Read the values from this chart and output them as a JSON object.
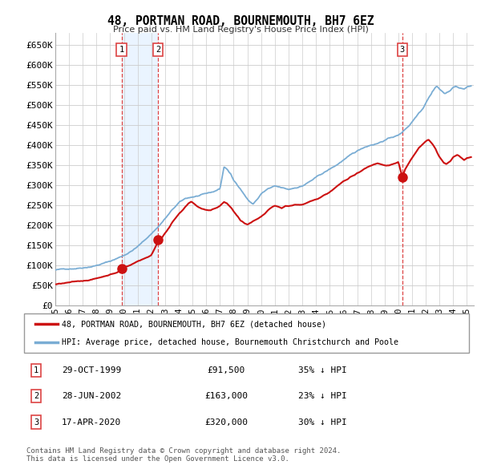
{
  "title": "48, PORTMAN ROAD, BOURNEMOUTH, BH7 6EZ",
  "subtitle": "Price paid vs. HM Land Registry's House Price Index (HPI)",
  "ylabel_ticks": [
    "£0",
    "£50K",
    "£100K",
    "£150K",
    "£200K",
    "£250K",
    "£300K",
    "£350K",
    "£400K",
    "£450K",
    "£500K",
    "£550K",
    "£600K",
    "£650K"
  ],
  "ytick_values": [
    0,
    50000,
    100000,
    150000,
    200000,
    250000,
    300000,
    350000,
    400000,
    450000,
    500000,
    550000,
    600000,
    650000
  ],
  "hpi_color": "#7aadd4",
  "hpi_fill_color": "#ddeeff",
  "price_color": "#cc1111",
  "marker_color": "#cc1111",
  "dashed_color": "#dd4444",
  "transactions": [
    {
      "label": "1",
      "date_num": 1999.83,
      "price": 91500,
      "pct": "35% ↓ HPI",
      "date_str": "29-OCT-1999"
    },
    {
      "label": "2",
      "date_num": 2002.49,
      "price": 163000,
      "pct": "23% ↓ HPI",
      "date_str": "28-JUN-2002"
    },
    {
      "label": "3",
      "date_num": 2020.29,
      "price": 320000,
      "pct": "30% ↓ HPI",
      "date_str": "17-APR-2020"
    }
  ],
  "legend_entries": [
    "48, PORTMAN ROAD, BOURNEMOUTH, BH7 6EZ (detached house)",
    "HPI: Average price, detached house, Bournemouth Christchurch and Poole"
  ],
  "footer": "Contains HM Land Registry data © Crown copyright and database right 2024.\nThis data is licensed under the Open Government Licence v3.0.",
  "xmin": 1995,
  "xmax": 2025.5,
  "ymin": 0,
  "ymax": 680000,
  "hpi_breakpoints": [
    [
      1995.0,
      88000
    ],
    [
      1995.5,
      89000
    ],
    [
      1996.0,
      91000
    ],
    [
      1996.5,
      93000
    ],
    [
      1997.0,
      96000
    ],
    [
      1997.5,
      99000
    ],
    [
      1998.0,
      103000
    ],
    [
      1998.5,
      108000
    ],
    [
      1999.0,
      113000
    ],
    [
      1999.5,
      120000
    ],
    [
      2000.0,
      128000
    ],
    [
      2000.5,
      138000
    ],
    [
      2001.0,
      150000
    ],
    [
      2001.5,
      165000
    ],
    [
      2002.0,
      182000
    ],
    [
      2002.5,
      200000
    ],
    [
      2003.0,
      220000
    ],
    [
      2003.5,
      240000
    ],
    [
      2004.0,
      258000
    ],
    [
      2004.5,
      268000
    ],
    [
      2005.0,
      272000
    ],
    [
      2005.5,
      275000
    ],
    [
      2006.0,
      278000
    ],
    [
      2006.5,
      282000
    ],
    [
      2007.0,
      290000
    ],
    [
      2007.3,
      345000
    ],
    [
      2007.5,
      340000
    ],
    [
      2007.8,
      325000
    ],
    [
      2008.0,
      310000
    ],
    [
      2008.3,
      298000
    ],
    [
      2008.5,
      290000
    ],
    [
      2008.8,
      275000
    ],
    [
      2009.0,
      265000
    ],
    [
      2009.2,
      258000
    ],
    [
      2009.4,
      252000
    ],
    [
      2009.6,
      260000
    ],
    [
      2009.8,
      268000
    ],
    [
      2010.0,
      278000
    ],
    [
      2010.5,
      290000
    ],
    [
      2011.0,
      295000
    ],
    [
      2011.5,
      290000
    ],
    [
      2012.0,
      285000
    ],
    [
      2012.5,
      290000
    ],
    [
      2013.0,
      295000
    ],
    [
      2013.5,
      305000
    ],
    [
      2014.0,
      315000
    ],
    [
      2014.5,
      325000
    ],
    [
      2015.0,
      335000
    ],
    [
      2015.5,
      345000
    ],
    [
      2016.0,
      358000
    ],
    [
      2016.5,
      368000
    ],
    [
      2017.0,
      378000
    ],
    [
      2017.5,
      388000
    ],
    [
      2018.0,
      395000
    ],
    [
      2018.5,
      400000
    ],
    [
      2019.0,
      408000
    ],
    [
      2019.5,
      415000
    ],
    [
      2020.0,
      420000
    ],
    [
      2020.3,
      428000
    ],
    [
      2020.5,
      435000
    ],
    [
      2020.8,
      445000
    ],
    [
      2021.0,
      455000
    ],
    [
      2021.3,
      468000
    ],
    [
      2021.5,
      478000
    ],
    [
      2021.8,
      490000
    ],
    [
      2022.0,
      505000
    ],
    [
      2022.2,
      518000
    ],
    [
      2022.4,
      528000
    ],
    [
      2022.5,
      535000
    ],
    [
      2022.6,
      540000
    ],
    [
      2022.7,
      545000
    ],
    [
      2022.8,
      548000
    ],
    [
      2022.9,
      545000
    ],
    [
      2023.0,
      540000
    ],
    [
      2023.2,
      535000
    ],
    [
      2023.4,
      528000
    ],
    [
      2023.5,
      530000
    ],
    [
      2023.6,
      532000
    ],
    [
      2023.8,
      538000
    ],
    [
      2024.0,
      545000
    ],
    [
      2024.2,
      548000
    ],
    [
      2024.5,
      542000
    ],
    [
      2024.8,
      540000
    ],
    [
      2025.0,
      545000
    ],
    [
      2025.3,
      548000
    ]
  ],
  "price_breakpoints": [
    [
      1995.0,
      52000
    ],
    [
      1995.5,
      54000
    ],
    [
      1996.0,
      56000
    ],
    [
      1996.5,
      58000
    ],
    [
      1997.0,
      60000
    ],
    [
      1997.5,
      63000
    ],
    [
      1998.0,
      67000
    ],
    [
      1998.5,
      72000
    ],
    [
      1999.0,
      78000
    ],
    [
      1999.5,
      83000
    ],
    [
      1999.83,
      91500
    ],
    [
      2000.0,
      96000
    ],
    [
      2000.5,
      103000
    ],
    [
      2001.0,
      112000
    ],
    [
      2001.5,
      120000
    ],
    [
      2002.0,
      128000
    ],
    [
      2002.49,
      163000
    ],
    [
      2002.6,
      170000
    ],
    [
      2002.8,
      175000
    ],
    [
      2003.0,
      185000
    ],
    [
      2003.3,
      198000
    ],
    [
      2003.5,
      210000
    ],
    [
      2003.8,
      222000
    ],
    [
      2004.0,
      232000
    ],
    [
      2004.3,
      242000
    ],
    [
      2004.5,
      250000
    ],
    [
      2004.7,
      258000
    ],
    [
      2004.9,
      263000
    ],
    [
      2005.1,
      258000
    ],
    [
      2005.3,
      252000
    ],
    [
      2005.5,
      248000
    ],
    [
      2005.7,
      245000
    ],
    [
      2006.0,
      242000
    ],
    [
      2006.3,
      240000
    ],
    [
      2006.5,
      243000
    ],
    [
      2006.8,
      248000
    ],
    [
      2007.0,
      252000
    ],
    [
      2007.3,
      262000
    ],
    [
      2007.5,
      258000
    ],
    [
      2007.8,
      248000
    ],
    [
      2008.0,
      238000
    ],
    [
      2008.3,
      225000
    ],
    [
      2008.5,
      215000
    ],
    [
      2008.8,
      208000
    ],
    [
      2009.0,
      205000
    ],
    [
      2009.2,
      208000
    ],
    [
      2009.4,
      212000
    ],
    [
      2009.6,
      215000
    ],
    [
      2009.8,
      218000
    ],
    [
      2010.0,
      222000
    ],
    [
      2010.3,
      230000
    ],
    [
      2010.5,
      238000
    ],
    [
      2010.8,
      245000
    ],
    [
      2011.0,
      248000
    ],
    [
      2011.3,
      245000
    ],
    [
      2011.5,
      242000
    ],
    [
      2011.8,
      248000
    ],
    [
      2012.0,
      248000
    ],
    [
      2012.3,
      250000
    ],
    [
      2012.5,
      252000
    ],
    [
      2012.8,
      252000
    ],
    [
      2013.0,
      252000
    ],
    [
      2013.3,
      255000
    ],
    [
      2013.5,
      258000
    ],
    [
      2013.8,
      262000
    ],
    [
      2014.0,
      265000
    ],
    [
      2014.3,
      270000
    ],
    [
      2014.5,
      275000
    ],
    [
      2014.8,
      280000
    ],
    [
      2015.0,
      285000
    ],
    [
      2015.3,
      292000
    ],
    [
      2015.5,
      298000
    ],
    [
      2015.8,
      305000
    ],
    [
      2016.0,
      310000
    ],
    [
      2016.3,
      315000
    ],
    [
      2016.5,
      320000
    ],
    [
      2016.8,
      325000
    ],
    [
      2017.0,
      330000
    ],
    [
      2017.3,
      335000
    ],
    [
      2017.5,
      340000
    ],
    [
      2017.8,
      345000
    ],
    [
      2018.0,
      348000
    ],
    [
      2018.3,
      352000
    ],
    [
      2018.5,
      355000
    ],
    [
      2018.8,
      352000
    ],
    [
      2019.0,
      350000
    ],
    [
      2019.3,
      350000
    ],
    [
      2019.5,
      352000
    ],
    [
      2019.8,
      355000
    ],
    [
      2020.0,
      358000
    ],
    [
      2020.29,
      320000
    ],
    [
      2020.5,
      340000
    ],
    [
      2020.8,
      358000
    ],
    [
      2021.0,
      368000
    ],
    [
      2021.3,
      382000
    ],
    [
      2021.5,
      392000
    ],
    [
      2021.8,
      402000
    ],
    [
      2022.0,
      408000
    ],
    [
      2022.2,
      412000
    ],
    [
      2022.3,
      408000
    ],
    [
      2022.5,
      400000
    ],
    [
      2022.7,
      390000
    ],
    [
      2022.8,
      382000
    ],
    [
      2023.0,
      370000
    ],
    [
      2023.2,
      360000
    ],
    [
      2023.3,
      355000
    ],
    [
      2023.5,
      352000
    ],
    [
      2023.8,
      358000
    ],
    [
      2024.0,
      368000
    ],
    [
      2024.3,
      375000
    ],
    [
      2024.5,
      370000
    ],
    [
      2024.8,
      362000
    ],
    [
      2025.0,
      368000
    ],
    [
      2025.3,
      370000
    ]
  ]
}
